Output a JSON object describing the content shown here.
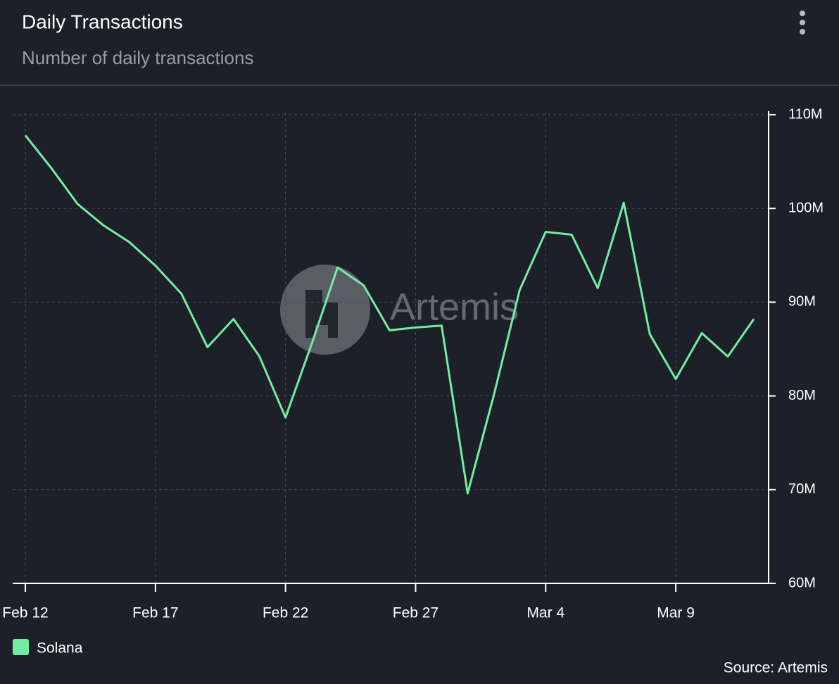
{
  "chart_data": {
    "type": "line",
    "title": "Daily Transactions",
    "subtitle": "Number of daily transactions",
    "categories": [
      "Feb 12",
      null,
      null,
      null,
      null,
      "Feb 17",
      null,
      null,
      null,
      null,
      "Feb 22",
      null,
      null,
      null,
      null,
      "Feb 27",
      null,
      null,
      null,
      null,
      "Mar 4",
      null,
      null,
      null,
      null,
      "Mar 9",
      null,
      null,
      null
    ],
    "series": [
      {
        "name": "Solana",
        "color": "#72eda0",
        "values": [
          107800000,
          104300000,
          100500000,
          98200000,
          96400000,
          93900000,
          90900000,
          85200000,
          88200000,
          84200000,
          77700000,
          85500000,
          93700000,
          91800000,
          87000000,
          87300000,
          87500000,
          69600000,
          80000000,
          91300000,
          97500000,
          97200000,
          91500000,
          100600000,
          86600000,
          81800000,
          86700000,
          84200000,
          88200000
        ]
      }
    ],
    "ylim": [
      60000000,
      110000000
    ],
    "yticks": [
      {
        "value": 60000000,
        "label": "60M"
      },
      {
        "value": 70000000,
        "label": "70M"
      },
      {
        "value": 80000000,
        "label": "80M"
      },
      {
        "value": 90000000,
        "label": "90M"
      },
      {
        "value": 100000000,
        "label": "100M"
      },
      {
        "value": 110000000,
        "label": "110M"
      }
    ],
    "grid": true,
    "watermark": "Artemis",
    "source": "Source: Artemis"
  }
}
